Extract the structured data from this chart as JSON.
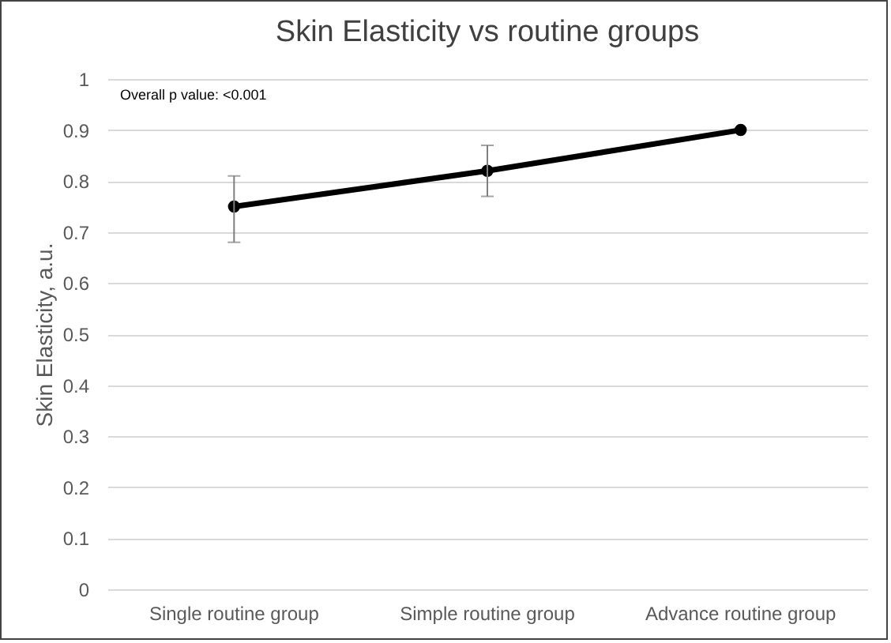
{
  "chart_data": {
    "type": "line",
    "title": "Skin Elasticity vs routine groups",
    "ylabel": "Skin Elasticity, a.u.",
    "categories": [
      "Single routine group",
      "Simple routine group",
      "Advance routine group"
    ],
    "series": [
      {
        "color": "#000000",
        "values": [
          0.75,
          0.82,
          0.9
        ],
        "errors": [
          [
            0.68,
            0.81
          ],
          [
            0.77,
            0.87
          ],
          null
        ]
      }
    ],
    "ylim": [
      0,
      1
    ],
    "yticks": [
      0,
      0.1,
      0.2,
      0.3,
      0.4,
      0.5,
      0.6,
      0.7,
      0.8,
      0.9,
      1
    ],
    "grid": "y",
    "marker": "circle",
    "line_style": "solid",
    "annotations": [
      "Overall p value: <0.001"
    ]
  }
}
